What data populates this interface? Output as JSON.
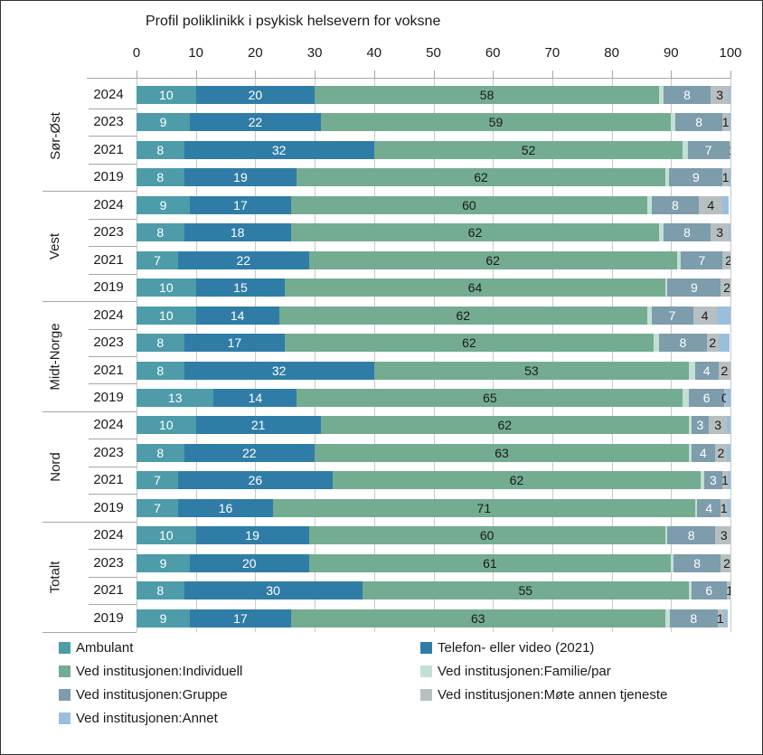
{
  "chart_data": {
    "type": "bar",
    "orientation": "horizontal",
    "stacked": true,
    "title": "Profil poliklinikk i psykisk helsevern for voksne",
    "x_axis": {
      "min": 0,
      "max": 100,
      "tick_step": 10,
      "tick_labels": [
        "0",
        "10",
        "20",
        "30",
        "40",
        "50",
        "60",
        "70",
        "80",
        "90",
        "100"
      ]
    },
    "grid": true,
    "legend_position": "bottom",
    "series": [
      {
        "key": "ambulant",
        "name": "Ambulant",
        "color": "#4E9CA9",
        "label_color": "#ffffff"
      },
      {
        "key": "telefon_video",
        "name": "Telefon- eller video (2021)",
        "color": "#2F7DA7",
        "label_color": "#ffffff"
      },
      {
        "key": "individuell",
        "name": "Ved institusjonen:Individuell",
        "color": "#74AC92",
        "label_color": "#1a1a1a"
      },
      {
        "key": "familie_par",
        "name": "Ved institusjonen:Familie/par",
        "color": "#C4DFD4",
        "label_color": "#1a1a1a"
      },
      {
        "key": "gruppe",
        "name": "Ved institusjonen:Gruppe",
        "color": "#7D9CAC",
        "label_color": "#ffffff"
      },
      {
        "key": "mote_annen",
        "name": "Ved institusjonen:Møte annen tjeneste",
        "color": "#B8BFC0",
        "label_color": "#1a1a1a"
      },
      {
        "key": "annet",
        "name": "Ved institusjonen:Annet",
        "color": "#9ABFDC",
        "label_color": "#1a1a1a"
      }
    ],
    "groups": [
      {
        "name": "Sør-Øst",
        "rows": [
          {
            "year": "2024",
            "values": [
              10,
              20,
              58,
              0.7,
              8,
              3,
              0.8
            ],
            "labels": [
              "10",
              "20",
              "58",
              null,
              "8",
              "3",
              null
            ]
          },
          {
            "year": "2023",
            "values": [
              9,
              22,
              59,
              0.7,
              8,
              1,
              0.8
            ],
            "labels": [
              "9",
              "22",
              "59",
              null,
              "8",
              "1",
              null
            ]
          },
          {
            "year": "2021",
            "values": [
              8,
              32,
              52,
              0.8,
              7,
              1,
              0.5
            ],
            "labels": [
              "8",
              "32",
              "52",
              null,
              "7",
              "1",
              null
            ]
          },
          {
            "year": "2019",
            "values": [
              8,
              19,
              62,
              0.7,
              9,
              1,
              0.5
            ],
            "labels": [
              "8",
              "19",
              "62",
              null,
              "9",
              "1",
              null
            ]
          }
        ]
      },
      {
        "name": "Vest",
        "rows": [
          {
            "year": "2024",
            "values": [
              9,
              17,
              60,
              0.7,
              8,
              4,
              1.0
            ],
            "labels": [
              "9",
              "17",
              "60",
              null,
              "8",
              "4",
              null
            ]
          },
          {
            "year": "2023",
            "values": [
              8,
              18,
              62,
              0.7,
              8,
              3,
              0.8
            ],
            "labels": [
              "8",
              "18",
              "62",
              null,
              "8",
              "3",
              null
            ]
          },
          {
            "year": "2021",
            "values": [
              7,
              22,
              62,
              0.7,
              7,
              2,
              0.6
            ],
            "labels": [
              "7",
              "22",
              "62",
              null,
              "7",
              "2",
              null
            ]
          },
          {
            "year": "2019",
            "values": [
              10,
              15,
              64,
              0.4,
              9,
              2,
              0.6
            ],
            "labels": [
              "10",
              "15",
              "64",
              null,
              "9",
              "2",
              null
            ]
          }
        ]
      },
      {
        "name": "Midt-Norge",
        "rows": [
          {
            "year": "2024",
            "values": [
              10,
              14,
              62,
              0.7,
              7,
              4,
              2.3
            ],
            "labels": [
              "10",
              "14",
              "62",
              null,
              "7",
              "4",
              null
            ]
          },
          {
            "year": "2023",
            "values": [
              8,
              17,
              62,
              1.0,
              8,
              2,
              1.8
            ],
            "labels": [
              "8",
              "17",
              "62",
              null,
              "8",
              "2",
              null
            ]
          },
          {
            "year": "2021",
            "values": [
              8,
              32,
              53,
              1.0,
              4,
              2,
              0.5
            ],
            "labels": [
              "8",
              "32",
              "53",
              null,
              "4",
              "2",
              null
            ]
          },
          {
            "year": "2019",
            "values": [
              13,
              14,
              65,
              1.0,
              6,
              0.2,
              0.8
            ],
            "labels": [
              "13",
              "14",
              "65",
              null,
              "6",
              "0",
              null
            ]
          }
        ]
      },
      {
        "name": "Nord",
        "rows": [
          {
            "year": "2024",
            "values": [
              10,
              21,
              62,
              0.4,
              3,
              3,
              1.2
            ],
            "labels": [
              "10",
              "21",
              "62",
              null,
              "3",
              "3",
              null
            ]
          },
          {
            "year": "2023",
            "values": [
              8,
              22,
              63,
              0.4,
              4,
              2,
              1.2
            ],
            "labels": [
              "8",
              "22",
              "63",
              null,
              "4",
              "2",
              null
            ]
          },
          {
            "year": "2021",
            "values": [
              7,
              26,
              62,
              0.6,
              3,
              1,
              0.5
            ],
            "labels": [
              "7",
              "26",
              "62",
              null,
              "3",
              "1",
              null
            ]
          },
          {
            "year": "2019",
            "values": [
              7,
              16,
              71,
              0.4,
              4,
              1,
              0.6
            ],
            "labels": [
              "7",
              "16",
              "71",
              null,
              "4",
              "1",
              null
            ]
          }
        ]
      },
      {
        "name": "Totalt",
        "rows": [
          {
            "year": "2024",
            "values": [
              10,
              19,
              60,
              0.4,
              8,
              3,
              0.6
            ],
            "labels": [
              "10",
              "19",
              "60",
              null,
              "8",
              "3",
              null
            ]
          },
          {
            "year": "2023",
            "values": [
              9,
              20,
              61,
              0.4,
              8,
              2,
              0.7
            ],
            "labels": [
              "9",
              "20",
              "61",
              null,
              "8",
              "2",
              null
            ]
          },
          {
            "year": "2021",
            "values": [
              8,
              30,
              55,
              0.4,
              6,
              1,
              0.8
            ],
            "labels": [
              "8",
              "30",
              "55",
              null,
              "6",
              "1",
              null
            ]
          },
          {
            "year": "2019",
            "values": [
              9,
              17,
              63,
              0.8,
              8,
              1,
              0.8
            ],
            "labels": [
              "9",
              "17",
              "63",
              null,
              "8",
              "1",
              null
            ]
          }
        ]
      }
    ]
  },
  "legend": {
    "items": [
      {
        "series": "ambulant",
        "label": "Ambulant"
      },
      {
        "series": "telefon_video",
        "label": "Telefon- eller video (2021)"
      },
      {
        "series": "individuell",
        "label": "Ved institusjonen:Individuell"
      },
      {
        "series": "familie_par",
        "label": "Ved institusjonen:Familie/par"
      },
      {
        "series": "gruppe",
        "label": "Ved institusjonen:Gruppe"
      },
      {
        "series": "mote_annen",
        "label": "Ved institusjonen:Møte annen tjeneste"
      },
      {
        "series": "annet",
        "label": "Ved institusjonen:Annet"
      }
    ]
  }
}
